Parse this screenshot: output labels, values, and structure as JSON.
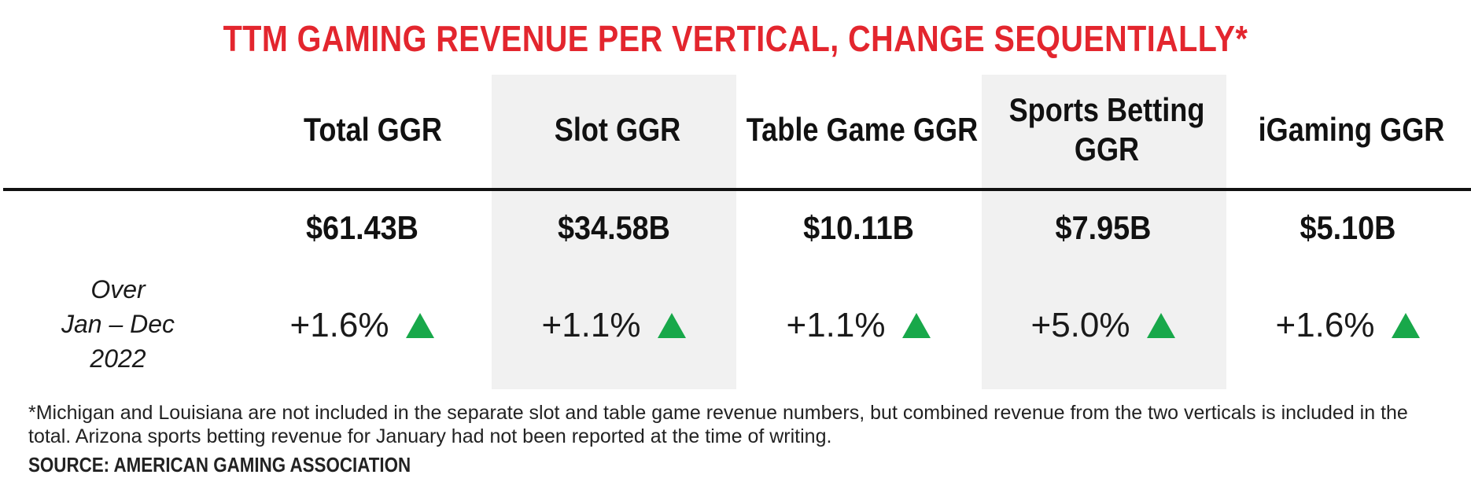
{
  "chart_data": {
    "type": "table",
    "title": "TTM GAMING REVENUE PER VERTICAL, CHANGE SEQUENTIALLY*",
    "columns": [
      "Total GGR",
      "Slot GGR",
      "Table Game GGR",
      "Sports Betting GGR",
      "iGaming GGR"
    ],
    "rows": [
      {
        "label": "",
        "values": [
          "$61.43B",
          "$34.58B",
          "$10.11B",
          "$7.95B",
          "$5.10B"
        ]
      },
      {
        "label": "Over Jan – Dec 2022",
        "label_lines": [
          "Over",
          "Jan – Dec",
          "2022"
        ],
        "values": [
          "+1.6%",
          "+1.1%",
          "+1.1%",
          "+5.0%",
          "+1.6%"
        ],
        "direction": [
          "up",
          "up",
          "up",
          "up",
          "up"
        ]
      }
    ],
    "colors": {
      "title": "#e3262e",
      "up": "#18a84a",
      "shade": "#f1f1f1"
    }
  },
  "footnote": "*Michigan and Louisiana are not included in the separate slot and table game revenue numbers, but combined revenue from the two verticals is included in the total. Arizona sports betting revenue for January had not been reported at the time of writing.",
  "source": "SOURCE: AMERICAN GAMING ASSOCIATION",
  "icons": {
    "up": "up-triangle-icon"
  }
}
